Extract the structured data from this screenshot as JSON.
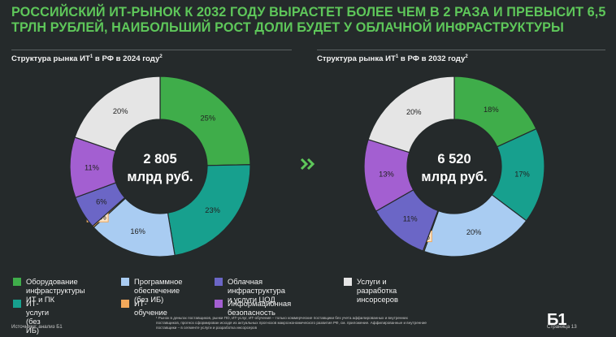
{
  "slide": {
    "title": "Российский ИТ-рынок к 2032 году вырастет более чем в 2 раза и превысит 6,5 трлн рублей, наибольший рост доли будет у облачной инфраструктуры",
    "source": "Источники: анализ Б1",
    "footnote": "¹ Рынок в деньгах поставщиков, рынки ПО, ИТ-услуг, ИТ-обучения – только коммерческие поставщики без учета аффилированных и внутренних\nпоставщиков, прогноз сформирован исходя из актуальных прогнозов макроэкономического развития РФ, см. приложение. Аффилированные и внутренние\nпоставщики – в сегменте услуги и разработка инсорсеров",
    "logo": "Б1",
    "page": "Страница 13",
    "arrow_icon": "double-chevron-right-icon"
  },
  "colors": {
    "title": "#5ec75a",
    "hardware": "#3fad4a",
    "it_services": "#17a08e",
    "software": "#a9ccf2",
    "it_education": "#f2a85a",
    "cloud": "#6b66c6",
    "security": "#a35fd1",
    "insourcing": "#e5e5e5"
  },
  "chart_data": [
    {
      "type": "donut",
      "title": "Структура рынка ИТ",
      "title_suffix": " в РФ в 2024 году",
      "title_sup1": "1",
      "title_sup2": "2",
      "center_value": "2 805",
      "center_unit": "млрд руб.",
      "slices": [
        {
          "key": "hardware",
          "value": 25,
          "label": "25%"
        },
        {
          "key": "it_services",
          "value": 23,
          "label": "23%"
        },
        {
          "key": "software",
          "value": 16,
          "label": "16%"
        },
        {
          "key": "it_education",
          "value": 0.3,
          "label": "0,3%"
        },
        {
          "key": "cloud",
          "value": 6,
          "label": "6%"
        },
        {
          "key": "security",
          "value": 11,
          "label": "11%"
        },
        {
          "key": "insourcing",
          "value": 20,
          "label": "20%"
        }
      ]
    },
    {
      "type": "donut",
      "title": "Структура рынка ИТ",
      "title_suffix": " в РФ в 2032 году",
      "title_sup1": "1",
      "title_sup2": "2",
      "center_value": "6 520",
      "center_unit": "млрд руб.",
      "slices": [
        {
          "key": "hardware",
          "value": 18,
          "label": "18%"
        },
        {
          "key": "it_services",
          "value": 17,
          "label": "17%"
        },
        {
          "key": "software",
          "value": 20,
          "label": "20%"
        },
        {
          "key": "it_education",
          "value": 0.2,
          "label": "0,2%"
        },
        {
          "key": "cloud",
          "value": 11,
          "label": "11%"
        },
        {
          "key": "security",
          "value": 13,
          "label": "13%"
        },
        {
          "key": "insourcing",
          "value": 20,
          "label": "20%"
        }
      ]
    }
  ],
  "legend": [
    {
      "key": "hardware",
      "label": "Оборудование\nинфраструктуры ИТ и ПК"
    },
    {
      "key": "software",
      "label": "Программное\nобеспечение (без ИБ)"
    },
    {
      "key": "cloud",
      "label": "Облачная инфраструктура\nи услуги ЦОД"
    },
    {
      "key": "insourcing",
      "label": "Услуги и разработка\nинсорсеров"
    },
    {
      "key": "it_services",
      "label": "ИТ-услуги (без ИБ)"
    },
    {
      "key": "it_education",
      "label": "ИТ-обучение"
    },
    {
      "key": "security",
      "label": "Информационная безопасность"
    }
  ]
}
